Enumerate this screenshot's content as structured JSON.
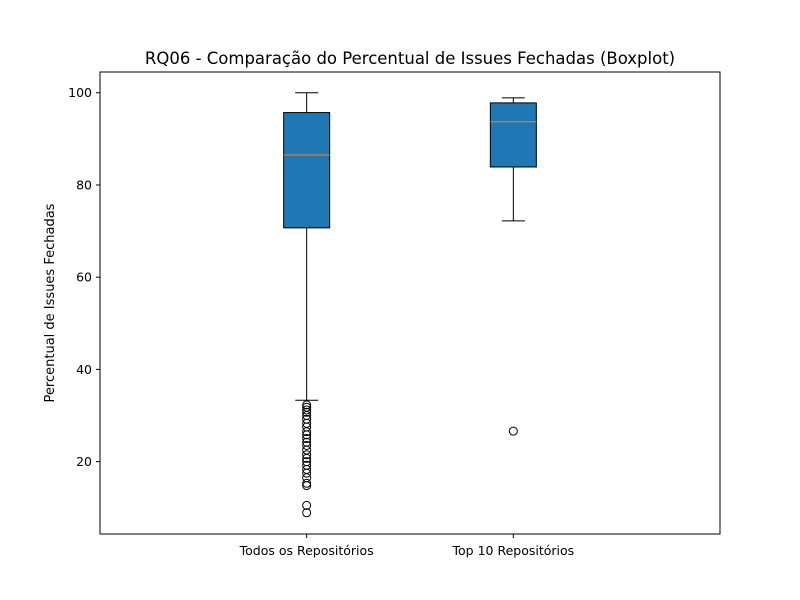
{
  "chart_data": {
    "type": "boxplot",
    "title": "RQ06 - Comparação do Percentual de Issues Fechadas (Boxplot)",
    "xlabel": "",
    "ylabel": "Percentual de Issues Fechadas",
    "ylim": [
      4.3,
      104.5
    ],
    "yticks": [
      20,
      40,
      60,
      80,
      100
    ],
    "grid": false,
    "box_color": "#1f77b4",
    "median_color": "#ff7f0e",
    "categories": [
      "Todos os Repositórios",
      "Top 10 Repositórios"
    ],
    "boxes": [
      {
        "whisker_low": 33.3,
        "q1": 70.7,
        "median": 86.5,
        "q3": 95.7,
        "whisker_high": 100,
        "outliers": [
          32.3,
          31.8,
          31.2,
          30.7,
          30.0,
          29.2,
          28.3,
          27.5,
          26.5,
          25.8,
          25.0,
          24.2,
          23.5,
          22.5,
          21.5,
          20.7,
          20.0,
          19.2,
          18.3,
          17.5,
          16.5,
          15.3,
          14.8,
          10.5,
          8.9
        ]
      },
      {
        "whisker_low": 72.2,
        "q1": 83.9,
        "median": 93.7,
        "q3": 97.8,
        "whisker_high": 98.9,
        "outliers": [
          26.6
        ]
      }
    ]
  }
}
